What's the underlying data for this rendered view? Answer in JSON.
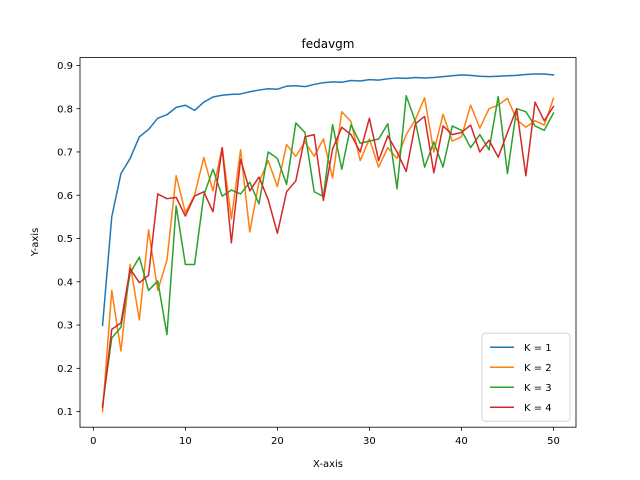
{
  "chart_data": {
    "type": "line",
    "title": "fedavgm",
    "xlabel": "X-axis",
    "ylabel": "Y-axis",
    "xlim": [
      -1.45,
      52.45
    ],
    "ylim": [
      0.064,
      0.918
    ],
    "xticks": [
      0,
      10,
      20,
      30,
      40,
      50
    ],
    "yticks": [
      0.1,
      0.2,
      0.3,
      0.4,
      0.5,
      0.6,
      0.7,
      0.8,
      0.9
    ],
    "grid": false,
    "legend": "bottom-right",
    "x": [
      1,
      2,
      3,
      4,
      5,
      6,
      7,
      8,
      9,
      10,
      11,
      12,
      13,
      14,
      15,
      16,
      17,
      18,
      19,
      20,
      21,
      22,
      23,
      24,
      25,
      26,
      27,
      28,
      29,
      30,
      31,
      32,
      33,
      34,
      35,
      36,
      37,
      38,
      39,
      40,
      41,
      42,
      43,
      44,
      45,
      46,
      47,
      48,
      49,
      50
    ],
    "series": [
      {
        "name": "K = 1",
        "color": "#1f77b4",
        "values": [
          0.299,
          0.55,
          0.65,
          0.685,
          0.735,
          0.752,
          0.778,
          0.786,
          0.803,
          0.808,
          0.796,
          0.815,
          0.827,
          0.831,
          0.833,
          0.834,
          0.839,
          0.843,
          0.846,
          0.845,
          0.852,
          0.853,
          0.851,
          0.856,
          0.86,
          0.862,
          0.861,
          0.865,
          0.864,
          0.867,
          0.866,
          0.869,
          0.871,
          0.87,
          0.872,
          0.871,
          0.872,
          0.874,
          0.876,
          0.878,
          0.877,
          0.875,
          0.874,
          0.875,
          0.876,
          0.877,
          0.879,
          0.88,
          0.88,
          0.878
        ]
      },
      {
        "name": "K = 2",
        "color": "#ff7f0e",
        "values": [
          0.1,
          0.38,
          0.24,
          0.44,
          0.312,
          0.52,
          0.38,
          0.45,
          0.645,
          0.56,
          0.6,
          0.687,
          0.61,
          0.71,
          0.545,
          0.705,
          0.515,
          0.63,
          0.68,
          0.62,
          0.717,
          0.69,
          0.723,
          0.69,
          0.73,
          0.64,
          0.793,
          0.77,
          0.68,
          0.73,
          0.665,
          0.71,
          0.685,
          0.74,
          0.775,
          0.825,
          0.7,
          0.787,
          0.725,
          0.735,
          0.808,
          0.755,
          0.8,
          0.808,
          0.824,
          0.775,
          0.757,
          0.772,
          0.762,
          0.824
        ]
      },
      {
        "name": "K = 3",
        "color": "#2ca02c",
        "values": [
          0.115,
          0.27,
          0.295,
          0.42,
          0.457,
          0.38,
          0.402,
          0.278,
          0.575,
          0.44,
          0.44,
          0.6,
          0.66,
          0.598,
          0.612,
          0.603,
          0.63,
          0.58,
          0.7,
          0.685,
          0.625,
          0.767,
          0.745,
          0.608,
          0.597,
          0.763,
          0.66,
          0.763,
          0.72,
          0.725,
          0.73,
          0.765,
          0.615,
          0.83,
          0.77,
          0.665,
          0.723,
          0.665,
          0.76,
          0.75,
          0.71,
          0.74,
          0.705,
          0.828,
          0.65,
          0.8,
          0.793,
          0.76,
          0.75,
          0.79
        ]
      },
      {
        "name": "K = 4",
        "color": "#d62728",
        "values": [
          0.11,
          0.29,
          0.305,
          0.43,
          0.398,
          0.415,
          0.603,
          0.592,
          0.595,
          0.552,
          0.598,
          0.608,
          0.562,
          0.71,
          0.49,
          0.683,
          0.61,
          0.642,
          0.59,
          0.512,
          0.608,
          0.633,
          0.735,
          0.74,
          0.588,
          0.707,
          0.757,
          0.74,
          0.7,
          0.778,
          0.68,
          0.737,
          0.7,
          0.655,
          0.765,
          0.782,
          0.652,
          0.76,
          0.74,
          0.745,
          0.762,
          0.7,
          0.727,
          0.688,
          0.745,
          0.8,
          0.645,
          0.815,
          0.772,
          0.805
        ]
      }
    ]
  }
}
